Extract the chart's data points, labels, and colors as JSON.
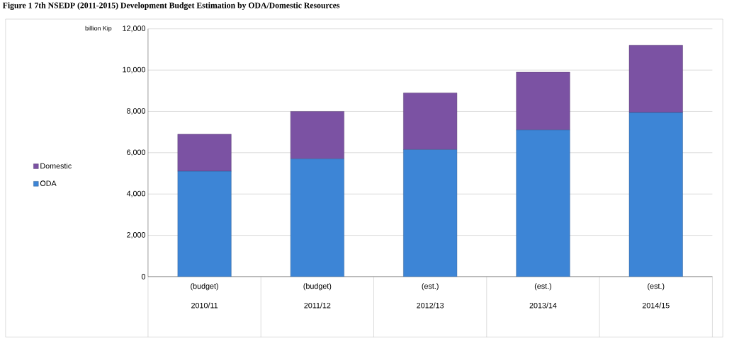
{
  "chart_data": {
    "type": "bar",
    "title": "Figure 1  7th NSEDP (2011-2015) Development Budget Estimation by ODA/Domestic Resources",
    "ylabel": "billion Kip",
    "categories": [
      "(budget) 2010/11",
      "(budget) 2011/12",
      "(est.) 2012/13",
      "(est.) 2013/14",
      "(est.) 2014/15"
    ],
    "stacked": true,
    "series": [
      {
        "name": "ODA",
        "color": "#3d85d6",
        "values": [
          5100,
          5700,
          6150,
          7100,
          7950
        ]
      },
      {
        "name": "Domestic",
        "color": "#7b52a3",
        "values": [
          1800,
          2300,
          2750,
          2800,
          3250
        ]
      }
    ],
    "ylim": [
      0,
      12000
    ],
    "yticks": [
      {
        "value": 0,
        "label": "0"
      },
      {
        "value": 2000,
        "label": "2,000"
      },
      {
        "value": 4000,
        "label": "4,000"
      },
      {
        "value": 6000,
        "label": "6,000"
      },
      {
        "value": 8000,
        "label": "8,000"
      },
      {
        "value": 10000,
        "label": "10,000"
      },
      {
        "value": 12000,
        "label": "12,000"
      }
    ],
    "grid": "y",
    "legend": "left"
  }
}
